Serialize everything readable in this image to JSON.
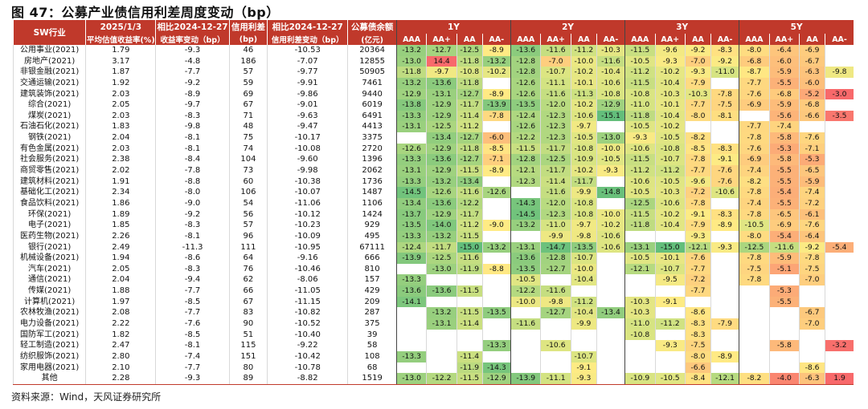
{
  "title": "图 47：公募产业债信用利差周度变动（bp）",
  "source": "资料来源：Wind，天风证券研究所",
  "colors": {
    "header": "#c0392b"
  },
  "headers": {
    "industry": "SW行业",
    "date_top": "2025/1/3",
    "date_bottom": "平均估值收益率(%)",
    "chg_yield_top": "相比2024-12-27",
    "chg_yield_bottom": "收益率变动（bp）",
    "spread_top": "信用利差",
    "spread_bottom": "(bp)",
    "chg_spread_top": "相比2024-12-27",
    "chg_spread_bottom": "信用利差变动（bp）",
    "balance_top": "公募债余额",
    "balance_bottom": "(亿元)",
    "tenors": [
      "1Y",
      "2Y",
      "3Y",
      "5Y"
    ],
    "grades": [
      "AAA",
      "AA+",
      "AA",
      "AA-"
    ]
  },
  "rows": [
    {
      "industry": "公用事业(2021)",
      "yield": "1.79",
      "chg_yield": "-9.3",
      "spread": "46",
      "chg_spread": "-10.53",
      "balance": "20364",
      "cells": [
        "-13.2",
        "-12.7",
        "-12.5",
        "-8.9",
        "-13.6",
        "-11.6",
        "-11.2",
        "-10.3",
        "-11.5",
        "-9.6",
        "-9.2",
        "-8.3",
        "-8.0",
        "-6.4",
        "-6.9",
        ""
      ]
    },
    {
      "industry": "房地产(2021)",
      "yield": "3.17",
      "chg_yield": "-4.8",
      "spread": "186",
      "chg_spread": "-7.07",
      "balance": "12855",
      "cells": [
        "-13.0",
        "14.4",
        "-11.8",
        "-13.2",
        "-12.8",
        "-7.0",
        "-10.0",
        "-11.6",
        "-10.5",
        "-9.3",
        "-7.0",
        "-9.2",
        "-6.8",
        "-6.0",
        "-6.7",
        ""
      ]
    },
    {
      "industry": "非银金融(2021)",
      "yield": "1.87",
      "chg_yield": "-7.7",
      "spread": "57",
      "chg_spread": "-9.77",
      "balance": "50905",
      "cells": [
        "-11.8",
        "-9.7",
        "-10.8",
        "-10.2",
        "-12.8",
        "-10.7",
        "-10.2",
        "-10.4",
        "-11.2",
        "-10.2",
        "-9.3",
        "-11.0",
        "-8.7",
        "-5.9",
        "-6.3",
        "-9.8"
      ]
    },
    {
      "industry": "交通运输(2021)",
      "yield": "1.92",
      "chg_yield": "-9.2",
      "spread": "59",
      "chg_spread": "-9.91",
      "balance": "7461",
      "cells": [
        "-13.2",
        "-13.6",
        "-11.8",
        "",
        "-12.6",
        "-11.1",
        "-10.1",
        "-10.6",
        "-11.5",
        "-10.4",
        "-7.9",
        "",
        "-7.7",
        "-5.5",
        "-6.0",
        ""
      ]
    },
    {
      "industry": "建筑装饰(2021)",
      "yield": "2.03",
      "chg_yield": "-8.9",
      "spread": "69",
      "chg_spread": "-9.86",
      "balance": "9440",
      "cells": [
        "-12.9",
        "-13.1",
        "-12.7",
        "-8.9",
        "-12.6",
        "-11.6",
        "-11.3",
        "-10.8",
        "-10.8",
        "-10.3",
        "-10.3",
        "-7.8",
        "-7.6",
        "-6.8",
        "-5.2",
        "-3.0"
      ]
    },
    {
      "industry": "综合(2021)",
      "yield": "2.05",
      "chg_yield": "-9.7",
      "spread": "67",
      "chg_spread": "-9.01",
      "balance": "6019",
      "cells": [
        "-13.8",
        "-12.9",
        "-11.7",
        "-13.9",
        "-13.5",
        "-12.0",
        "-10.2",
        "-12.9",
        "-11.0",
        "-10.1",
        "-7.7",
        "-7.5",
        "-6.9",
        "-5.9",
        "-6.8",
        ""
      ]
    },
    {
      "industry": "煤炭(2021)",
      "yield": "2.03",
      "chg_yield": "-8.3",
      "spread": "71",
      "chg_spread": "-9.63",
      "balance": "6491",
      "cells": [
        "-13.3",
        "-12.9",
        "-11.4",
        "-7.8",
        "-12.4",
        "-12.3",
        "-10.6",
        "-15.1",
        "-11.8",
        "-10.4",
        "-8.0",
        "-8.1",
        "",
        "-5.6",
        "-6.6",
        "-3.5"
      ]
    },
    {
      "industry": "石油石化(2021)",
      "yield": "1.83",
      "chg_yield": "-9.8",
      "spread": "48",
      "chg_spread": "-9.47",
      "balance": "4413",
      "cells": [
        "-13.1",
        "-12.5",
        "-11.2",
        "",
        "-12.6",
        "-12.3",
        "-9.7",
        "",
        "-10.5",
        "-10.2",
        "",
        "",
        "-7.7",
        "-7.4",
        "",
        ""
      ]
    },
    {
      "industry": "钢铁(2021)",
      "yield": "2.04",
      "chg_yield": "-8.1",
      "spread": "75",
      "chg_spread": "-10.17",
      "balance": "3375",
      "cells": [
        "",
        "-13.4",
        "-12.7",
        "-6.0",
        "-12.2",
        "-12.3",
        "-10.5",
        "-13.0",
        "-9.3",
        "-10.5",
        "-8.2",
        "",
        "-7.8",
        "-5.8",
        "-7.6",
        ""
      ]
    },
    {
      "industry": "有色金属(2021)",
      "yield": "2.03",
      "chg_yield": "-8.1",
      "spread": "74",
      "chg_spread": "-10.08",
      "balance": "2720",
      "cells": [
        "-12.6",
        "-12.9",
        "-11.8",
        "-8.5",
        "-11.5",
        "-11.7",
        "-10.8",
        "-10.0",
        "-10.6",
        "-10.8",
        "-8.5",
        "-8.3",
        "-7.6",
        "-5.3",
        "-7.1",
        ""
      ]
    },
    {
      "industry": "社会服务(2021)",
      "yield": "2.38",
      "chg_yield": "-8.4",
      "spread": "104",
      "chg_spread": "-9.60",
      "balance": "1396",
      "cells": [
        "-13.3",
        "-13.6",
        "-12.7",
        "-7.1",
        "-12.8",
        "-12.5",
        "-10.9",
        "-10.5",
        "-11.5",
        "-10.7",
        "-7.8",
        "-9.1",
        "-6.9",
        "-5.8",
        "-5.3",
        ""
      ]
    },
    {
      "industry": "商贸零售(2021)",
      "yield": "2.02",
      "chg_yield": "-7.8",
      "spread": "73",
      "chg_spread": "-9.98",
      "balance": "2062",
      "cells": [
        "-13.1",
        "-12.9",
        "-11.5",
        "-8.9",
        "-12.1",
        "-11.7",
        "-10.2",
        "-9.3",
        "-11.2",
        "-11.2",
        "-7.7",
        "-7.6",
        "-7.4",
        "-5.5",
        "-6.5",
        ""
      ]
    },
    {
      "industry": "建筑材料(2021)",
      "yield": "1.91",
      "chg_yield": "-8.8",
      "spread": "60",
      "chg_spread": "-10.38",
      "balance": "1736",
      "cells": [
        "-13.3",
        "-13.2",
        "-13.4",
        "",
        "-12.3",
        "-11.4",
        "-11.7",
        "",
        "-10.6",
        "-10.5",
        "-9.6",
        "-7.6",
        "-8.2",
        "-5.5",
        "-5.9",
        ""
      ]
    },
    {
      "industry": "基础化工(2021)",
      "yield": "2.34",
      "chg_yield": "-8.0",
      "spread": "106",
      "chg_spread": "-10.07",
      "balance": "1487",
      "cells": [
        "-14.5",
        "-12.6",
        "-11.6",
        "-12.6",
        "",
        "-11.6",
        "-9.9",
        "-14.8",
        "-10.5",
        "-10.3",
        "-7.2",
        "-10.6",
        "-7.8",
        "-5.4",
        "-7.4",
        ""
      ]
    },
    {
      "industry": "食品饮料(2021)",
      "yield": "1.86",
      "chg_yield": "-9.0",
      "spread": "54",
      "chg_spread": "-11.06",
      "balance": "1106",
      "cells": [
        "-13.4",
        "-13.6",
        "-12.2",
        "",
        "-14.3",
        "-12.0",
        "-10.8",
        "",
        "-12.5",
        "-10.6",
        "-7.8",
        "",
        "-7.4",
        "-5.5",
        "-7.2",
        ""
      ]
    },
    {
      "industry": "环保(2021)",
      "yield": "1.89",
      "chg_yield": "-9.2",
      "spread": "56",
      "chg_spread": "-10.12",
      "balance": "1424",
      "cells": [
        "-13.7",
        "-12.9",
        "-11.7",
        "",
        "-14.5",
        "-12.3",
        "-10.8",
        "-10.0",
        "-11.5",
        "-10.2",
        "-9.1",
        "-8.3",
        "-7.8",
        "-6.5",
        "-6.1",
        ""
      ]
    },
    {
      "industry": "电子(2021)",
      "yield": "1.85",
      "chg_yield": "-8.3",
      "spread": "57",
      "chg_spread": "-10.23",
      "balance": "929",
      "cells": [
        "-13.5",
        "-14.0",
        "-11.2",
        "-9.0",
        "-13.2",
        "-11.0",
        "-9.7",
        "-10.2",
        "-11.8",
        "-10.4",
        "-7.9",
        "-8.9",
        "-10.5",
        "-6.9",
        "-7.6",
        ""
      ]
    },
    {
      "industry": "医药生物(2021)",
      "yield": "2.26",
      "chg_yield": "-8.1",
      "spread": "96",
      "chg_spread": "-10.09",
      "balance": "495",
      "cells": [
        "-13.3",
        "-13.2",
        "-11.5",
        "",
        "",
        "-9.9",
        "-9.8",
        "-10.6",
        "",
        "",
        "-9.3",
        "",
        "-8.0",
        "-5.4",
        "-6.4",
        ""
      ]
    },
    {
      "industry": "银行(2021)",
      "yield": "2.49",
      "chg_yield": "-11.3",
      "spread": "111",
      "chg_spread": "-10.95",
      "balance": "67111",
      "cells": [
        "-12.4",
        "-11.7",
        "-15.0",
        "-13.2",
        "-13.1",
        "-14.7",
        "-13.5",
        "-10.6",
        "-13.1",
        "-15.0",
        "-12.1",
        "-9.3",
        "-12.5",
        "-11.6",
        "-9.2",
        "-5.4"
      ]
    },
    {
      "industry": "机械设备(2021)",
      "yield": "1.94",
      "chg_yield": "-8.6",
      "spread": "64",
      "chg_spread": "-9.16",
      "balance": "666",
      "cells": [
        "-13.9",
        "-12.5",
        "-11.6",
        "",
        "-13.6",
        "-12.8",
        "-10.7",
        "",
        "-10.5",
        "-10.1",
        "-7.6",
        "",
        "-7.8",
        "-5.9",
        "-7.8",
        ""
      ]
    },
    {
      "industry": "汽车(2021)",
      "yield": "2.05",
      "chg_yield": "-8.3",
      "spread": "76",
      "chg_spread": "-10.46",
      "balance": "810",
      "cells": [
        "",
        "-13.0",
        "-11.9",
        "-8.8",
        "-13.5",
        "-12.7",
        "-10.0",
        "",
        "-12.1",
        "-10.7",
        "-7.7",
        "",
        "-7.5",
        "-5.1",
        "-7.5",
        ""
      ]
    },
    {
      "industry": "通信(2021)",
      "yield": "2.04",
      "chg_yield": "-9.4",
      "spread": "62",
      "chg_spread": "-8.06",
      "balance": "157",
      "cells": [
        "-13.3",
        "",
        "",
        "",
        "-10.5",
        "",
        "-10.4",
        "",
        "",
        "-9.5",
        "-7.2",
        "",
        "-7.8",
        "",
        "-7.0",
        ""
      ]
    },
    {
      "industry": "传媒(2021)",
      "yield": "1.88",
      "chg_yield": "-7.7",
      "spread": "66",
      "chg_spread": "-11.05",
      "balance": "429",
      "cells": [
        "-13.6",
        "-13.6",
        "-11.5",
        "",
        "-12.2",
        "-11.6",
        "",
        "",
        "",
        "",
        "-7.7",
        "",
        "",
        "-5.3",
        "",
        ""
      ]
    },
    {
      "industry": "计算机(2021)",
      "yield": "1.97",
      "chg_yield": "-8.5",
      "spread": "67",
      "chg_spread": "-11.15",
      "balance": "209",
      "cells": [
        "-14.1",
        "",
        "",
        "",
        "-10.0",
        "-9.8",
        "-11.2",
        "",
        "-10.3",
        "-9.1",
        "",
        "",
        "",
        "-5.5",
        "",
        ""
      ]
    },
    {
      "industry": "农林牧渔(2021)",
      "yield": "2.08",
      "chg_yield": "-7.7",
      "spread": "83",
      "chg_spread": "-10.82",
      "balance": "287",
      "cells": [
        "",
        "-13.2",
        "-11.5",
        "-13.5",
        "",
        "-12.7",
        "-10.4",
        "-13.4",
        "-10.3",
        "",
        "-8.6",
        "",
        "",
        "",
        "-6.7",
        ""
      ]
    },
    {
      "industry": "电力设备(2021)",
      "yield": "2.22",
      "chg_yield": "-7.6",
      "spread": "90",
      "chg_spread": "-10.52",
      "balance": "375",
      "cells": [
        "",
        "-13.1",
        "-11.4",
        "",
        "-11.6",
        "",
        "-9.9",
        "",
        "-11.0",
        "-11.2",
        "-8.3",
        "-7.9",
        "",
        "",
        "-7.0",
        ""
      ]
    },
    {
      "industry": "国防军工(2021)",
      "yield": "1.82",
      "chg_yield": "-8.5",
      "spread": "51",
      "chg_spread": "-10.40",
      "balance": "39",
      "cells": [
        "",
        "",
        "",
        "",
        "",
        "",
        "",
        "",
        "-10.8",
        "",
        "-8.3",
        "",
        "",
        "",
        "",
        ""
      ]
    },
    {
      "industry": "轻工制造(2021)",
      "yield": "2.47",
      "chg_yield": "-8.1",
      "spread": "115",
      "chg_spread": "-9.22",
      "balance": "58",
      "cells": [
        "",
        "",
        "",
        "-13.3",
        "",
        "-10.6",
        "",
        "",
        "",
        "-9.3",
        "-7.5",
        "",
        "",
        "-5.8",
        "",
        "-3.2"
      ]
    },
    {
      "industry": "纺织服饰(2021)",
      "yield": "2.80",
      "chg_yield": "-7.4",
      "spread": "151",
      "chg_spread": "-10.42",
      "balance": "108",
      "cells": [
        "-13.3",
        "",
        "-11.4",
        "",
        "",
        "",
        "-10.7",
        "",
        "",
        "",
        "-8.0",
        "-8.9",
        "",
        "",
        "",
        ""
      ]
    },
    {
      "industry": "家用电器(2021)",
      "yield": "2.10",
      "chg_yield": "-7.7",
      "spread": "80",
      "chg_spread": "-10.78",
      "balance": "68",
      "cells": [
        "",
        "",
        "-11.9",
        "-14.3",
        "",
        "",
        "-9.1",
        "",
        "",
        "",
        "-6.6",
        "",
        "",
        "",
        "-8.6",
        ""
      ]
    },
    {
      "industry": "其他",
      "yield": "2.28",
      "chg_yield": "-9.3",
      "spread": "89",
      "chg_spread": "-8.82",
      "balance": "1519",
      "cells": [
        "-13.0",
        "-12.2",
        "-11.5",
        "-12.9",
        "-13.9",
        "-11.1",
        "-9.3",
        "",
        "-10.9",
        "-10.5",
        "-8.4",
        "-12.1",
        "-8.2",
        "-4.0",
        "-6.3",
        "1.9"
      ]
    }
  ]
}
